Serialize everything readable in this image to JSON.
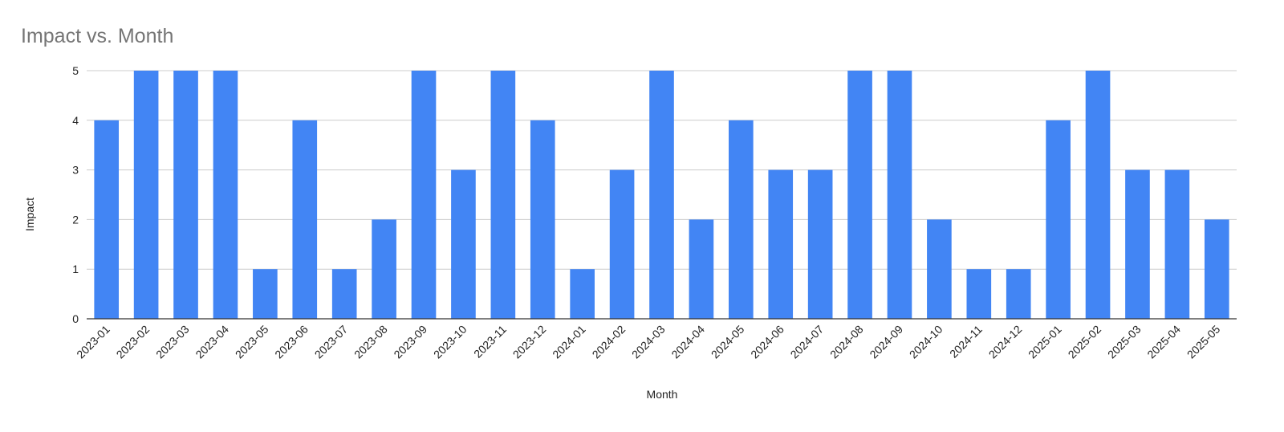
{
  "chart_data": {
    "type": "bar",
    "title": "Impact vs. Month",
    "x_label": "Month",
    "y_label": "Impact",
    "categories": [
      "2023-01",
      "2023-02",
      "2023-03",
      "2023-04",
      "2023-05",
      "2023-06",
      "2023-07",
      "2023-08",
      "2023-09",
      "2023-10",
      "2023-11",
      "2023-12",
      "2024-01",
      "2024-02",
      "2024-03",
      "2024-04",
      "2024-05",
      "2024-06",
      "2024-07",
      "2024-08",
      "2024-09",
      "2024-10",
      "2024-11",
      "2024-12",
      "2025-01",
      "2025-02",
      "2025-03",
      "2025-04",
      "2025-05"
    ],
    "values": [
      4,
      5,
      5,
      5,
      1,
      4,
      1,
      2,
      5,
      3,
      5,
      4,
      1,
      3,
      5,
      2,
      4,
      3,
      3,
      5,
      5,
      2,
      1,
      1,
      4,
      5,
      3,
      3,
      2
    ],
    "color": "#4285f4",
    "ylim": [
      0,
      5
    ],
    "yticks": [
      0,
      1,
      2,
      3,
      4,
      5
    ],
    "grid": true
  }
}
